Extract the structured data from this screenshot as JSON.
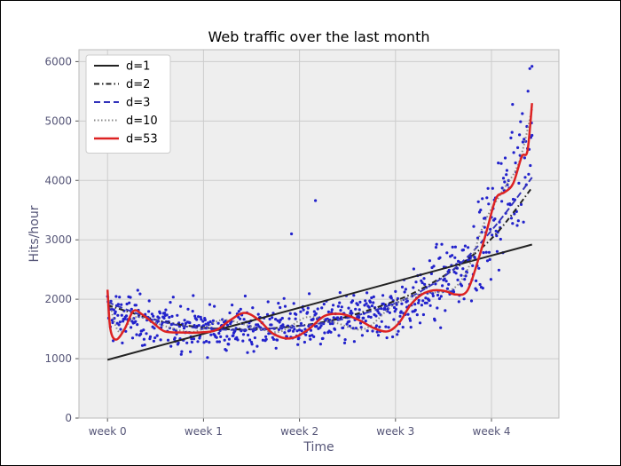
{
  "chart_data": {
    "type": "scatter",
    "title": "Web traffic over the last month",
    "xlabel": "Time",
    "ylabel": "Hits/hour",
    "x_unit": "hours",
    "xlim": [
      -50,
      790
    ],
    "ylim": [
      0,
      6200
    ],
    "x_ticks": [
      {
        "value": 0,
        "label": "week 0"
      },
      {
        "value": 168,
        "label": "week 1"
      },
      {
        "value": 336,
        "label": "week 2"
      },
      {
        "value": 504,
        "label": "week 3"
      },
      {
        "value": 672,
        "label": "week 4"
      }
    ],
    "y_ticks": [
      0,
      1000,
      2000,
      3000,
      4000,
      5000,
      6000
    ],
    "grid": true,
    "legend_position": "top-left",
    "colors": {
      "axes_bg": "#eeeeee",
      "grid": "#cccccc",
      "points": "#2222cc",
      "d1": "#222222",
      "d2": "#222222",
      "d3": "#3333bb",
      "d10": "#888888",
      "d53": "#dd2222"
    },
    "scatter": {
      "name": "hits",
      "x_range": [
        0,
        743
      ],
      "trend_anchors": [
        [
          0,
          1750
        ],
        [
          100,
          1550
        ],
        [
          200,
          1500
        ],
        [
          300,
          1550
        ],
        [
          400,
          1600
        ],
        [
          500,
          1800
        ],
        [
          560,
          2100
        ],
        [
          620,
          2500
        ],
        [
          660,
          3000
        ],
        [
          690,
          3600
        ],
        [
          720,
          4300
        ],
        [
          743,
          5000
        ]
      ],
      "outliers": [
        [
          364,
          3660
        ],
        [
          322,
          3100
        ],
        [
          743,
          5920
        ],
        [
          709,
          5280
        ]
      ]
    },
    "series": [
      {
        "name": "d=1",
        "style": "solid",
        "x": [
          0,
          743
        ],
        "y": [
          980,
          2920
        ]
      },
      {
        "name": "d=2",
        "style": "dashdot",
        "x": [
          0,
          100,
          200,
          300,
          400,
          500,
          560,
          620,
          680,
          743
        ],
        "y": [
          1900,
          1620,
          1500,
          1520,
          1660,
          1960,
          2230,
          2600,
          3100,
          3880
        ]
      },
      {
        "name": "d=3",
        "style": "dashed",
        "x": [
          0,
          100,
          200,
          300,
          400,
          500,
          560,
          620,
          680,
          743
        ],
        "y": [
          1950,
          1610,
          1490,
          1520,
          1640,
          1920,
          2200,
          2620,
          3250,
          4050
        ]
      },
      {
        "name": "d=10",
        "style": "dotted",
        "x": [
          0,
          20,
          50,
          100,
          150,
          200,
          250,
          300,
          350,
          400,
          450,
          500,
          550,
          600,
          630,
          660,
          690,
          720,
          743
        ],
        "y": [
          2100,
          1450,
          1700,
          1550,
          1450,
          1650,
          1550,
          1450,
          1700,
          1600,
          1500,
          1900,
          2100,
          2150,
          2500,
          3300,
          3800,
          4300,
          5200
        ]
      },
      {
        "name": "d=53",
        "style": "solid",
        "x": [
          0,
          5,
          15,
          30,
          45,
          60,
          80,
          100,
          130,
          160,
          190,
          215,
          240,
          265,
          290,
          320,
          350,
          380,
          410,
          440,
          465,
          490,
          510,
          530,
          550,
          570,
          590,
          610,
          630,
          650,
          665,
          680,
          695,
          710,
          725,
          735,
          743
        ],
        "y": [
          2160,
          1500,
          1320,
          1500,
          1800,
          1750,
          1600,
          1460,
          1440,
          1440,
          1480,
          1650,
          1770,
          1650,
          1420,
          1340,
          1480,
          1720,
          1750,
          1650,
          1520,
          1460,
          1600,
          1900,
          2080,
          2150,
          2140,
          2080,
          2150,
          2700,
          3200,
          3700,
          3800,
          3950,
          4400,
          4500,
          5300
        ]
      }
    ]
  }
}
